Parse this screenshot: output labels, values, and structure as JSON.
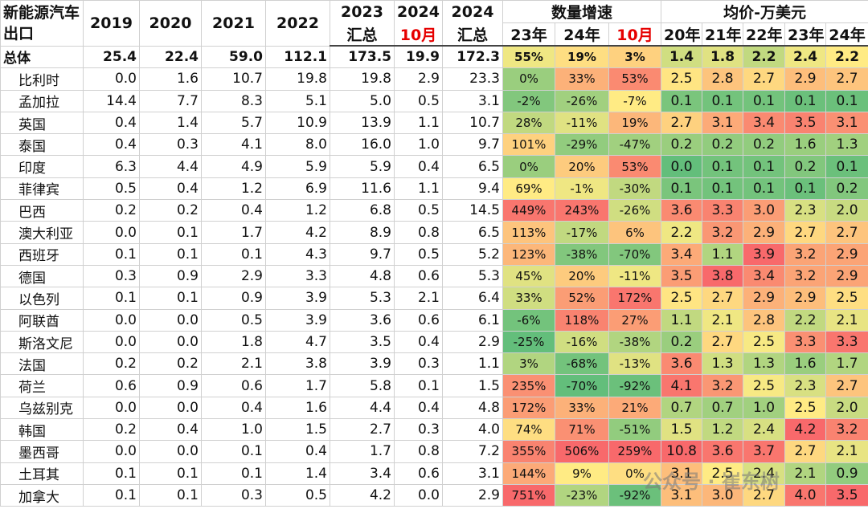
{
  "header": {
    "label": "新能源汽车出口",
    "years": [
      "2019",
      "2020",
      "2021",
      "2022"
    ],
    "sums": [
      {
        "year": "2023",
        "sub": "汇总"
      },
      {
        "year": "2024",
        "sub": "10月"
      },
      {
        "year": "2024",
        "sub": "汇总"
      }
    ],
    "growth": {
      "title": "数量增速",
      "cols": [
        "23年",
        "24年",
        "10月"
      ]
    },
    "price": {
      "title": "均价-万美元",
      "cols": [
        "20年",
        "21年",
        "22年",
        "23年",
        "24年"
      ]
    }
  },
  "rows": [
    [
      "总体",
      "25.4",
      "22.4",
      "59.0",
      "112.1",
      "173.5",
      "19.9",
      "172.3",
      "55%",
      "19%",
      "3%",
      "1.4",
      "1.8",
      "2.2",
      "2.4",
      "2.2"
    ],
    [
      "比利时",
      "0.0",
      "1.6",
      "10.7",
      "19.8",
      "19.8",
      "2.9",
      "23.3",
      "0%",
      "33%",
      "53%",
      "2.5",
      "2.8",
      "2.7",
      "2.9",
      "2.7"
    ],
    [
      "孟加拉",
      "14.4",
      "7.7",
      "8.3",
      "5.1",
      "5.0",
      "0.5",
      "3.1",
      "-2%",
      "-26%",
      "-7%",
      "0.1",
      "0.1",
      "0.1",
      "0.1",
      "0.1"
    ],
    [
      "英国",
      "0.4",
      "1.4",
      "5.7",
      "10.9",
      "13.9",
      "1.1",
      "10.7",
      "28%",
      "-11%",
      "19%",
      "2.7",
      "3.1",
      "3.4",
      "3.5",
      "3.1"
    ],
    [
      "泰国",
      "0.4",
      "0.3",
      "4.1",
      "8.0",
      "16.0",
      "1.0",
      "9.7",
      "101%",
      "-29%",
      "-47%",
      "0.2",
      "0.2",
      "0.2",
      "1.6",
      "1.3"
    ],
    [
      "印度",
      "6.3",
      "4.4",
      "4.9",
      "5.9",
      "5.9",
      "0.4",
      "6.5",
      "0%",
      "20%",
      "53%",
      "0.0",
      "0.1",
      "0.1",
      "0.2",
      "0.1"
    ],
    [
      "菲律宾",
      "0.5",
      "0.4",
      "1.2",
      "6.9",
      "11.6",
      "1.1",
      "9.4",
      "69%",
      "-1%",
      "-30%",
      "0.1",
      "0.1",
      "0.1",
      "0.1",
      "0.2"
    ],
    [
      "巴西",
      "0.2",
      "0.2",
      "0.4",
      "1.2",
      "6.8",
      "0.5",
      "14.5",
      "449%",
      "243%",
      "-26%",
      "3.6",
      "3.3",
      "3.0",
      "2.3",
      "2.0"
    ],
    [
      "澳大利亚",
      "0.0",
      "0.1",
      "1.7",
      "4.2",
      "8.9",
      "0.8",
      "6.5",
      "113%",
      "-17%",
      "6%",
      "2.2",
      "3.2",
      "2.9",
      "2.7",
      "2.7"
    ],
    [
      "西班牙",
      "0.1",
      "0.1",
      "0.1",
      "4.3",
      "9.7",
      "0.5",
      "5.2",
      "123%",
      "-38%",
      "-70%",
      "3.4",
      "1.1",
      "3.9",
      "3.2",
      "2.9"
    ],
    [
      "德国",
      "0.3",
      "0.9",
      "2.9",
      "3.3",
      "4.8",
      "0.6",
      "5.3",
      "45%",
      "20%",
      "-11%",
      "3.5",
      "3.8",
      "3.4",
      "3.2",
      "2.9"
    ],
    [
      "以色列",
      "0.1",
      "0.1",
      "0.9",
      "3.9",
      "5.3",
      "2.1",
      "6.4",
      "33%",
      "52%",
      "172%",
      "2.5",
      "2.7",
      "2.9",
      "2.9",
      "2.5"
    ],
    [
      "阿联酋",
      "0.0",
      "0.0",
      "0.5",
      "3.9",
      "3.6",
      "0.6",
      "6.1",
      "-6%",
      "118%",
      "27%",
      "1.1",
      "2.1",
      "2.8",
      "2.2",
      "2.1"
    ],
    [
      "斯洛文尼",
      "0.0",
      "0.0",
      "1.8",
      "4.7",
      "3.5",
      "0.4",
      "2.9",
      "-25%",
      "-16%",
      "-38%",
      "0.2",
      "2.7",
      "2.5",
      "3.3",
      "3.3"
    ],
    [
      "法国",
      "0.2",
      "0.2",
      "2.1",
      "3.8",
      "3.9",
      "0.3",
      "1.1",
      "3%",
      "-68%",
      "-13%",
      "3.6",
      "1.3",
      "1.3",
      "1.6",
      "1.7"
    ],
    [
      "荷兰",
      "0.6",
      "0.9",
      "0.6",
      "1.7",
      "5.8",
      "0.1",
      "1.5",
      "235%",
      "-70%",
      "-92%",
      "4.1",
      "3.2",
      "2.5",
      "2.3",
      "2.7"
    ],
    [
      "乌兹别克",
      "0.0",
      "0.0",
      "0.4",
      "1.6",
      "4.4",
      "0.4",
      "4.8",
      "172%",
      "33%",
      "21%",
      "0.7",
      "0.7",
      "1.0",
      "2.5",
      "2.0"
    ],
    [
      "韩国",
      "0.2",
      "0.4",
      "1.0",
      "1.5",
      "2.7",
      "0.3",
      "4.0",
      "74%",
      "71%",
      "-51%",
      "1.5",
      "1.2",
      "2.4",
      "4.2",
      "3.2"
    ],
    [
      "墨西哥",
      "0.0",
      "0.0",
      "0.1",
      "0.4",
      "1.7",
      "0.8",
      "7.2",
      "355%",
      "506%",
      "259%",
      "10.8",
      "3.6",
      "3.7",
      "2.7",
      "2.1"
    ],
    [
      "土耳其",
      "0.1",
      "0.1",
      "0.1",
      "1.4",
      "3.4",
      "0.6",
      "3.1",
      "144%",
      "9%",
      "0%",
      "3.1",
      "2.5",
      "2.4",
      "2.1",
      "0.9"
    ],
    [
      "加拿大",
      "0.1",
      "0.1",
      "0.3",
      "0.5",
      "4.2",
      "0.0",
      "2.9",
      "751%",
      "-23%",
      "-92%",
      "3.1",
      "3.0",
      "2.7",
      "4.0",
      "3.5"
    ]
  ],
  "watermark": "公众号 · 崔东树"
}
